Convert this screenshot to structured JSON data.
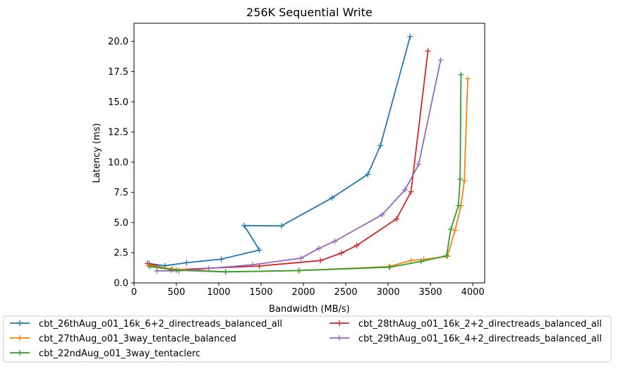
{
  "chart_data": {
    "type": "line",
    "title": "256K  Sequential Write",
    "xlabel": "Bandwidth (MB/s)",
    "ylabel": "Latency (ms)",
    "xlim": [
      0,
      4140
    ],
    "ylim": [
      0,
      21.5
    ],
    "xticks": [
      0,
      500,
      1000,
      1500,
      2000,
      2500,
      3000,
      3500,
      4000
    ],
    "yticks": [
      0.0,
      2.5,
      5.0,
      7.5,
      10.0,
      12.5,
      15.0,
      17.5,
      20.0
    ],
    "xtick_labels": [
      "0",
      "500",
      "1000",
      "1500",
      "2000",
      "2500",
      "3000",
      "3500",
      "4000"
    ],
    "ytick_labels": [
      "0.0",
      "2.5",
      "5.0",
      "7.5",
      "10.0",
      "12.5",
      "15.0",
      "17.5",
      "20.0"
    ],
    "marker": "+",
    "grid": false,
    "legend_position": "bottom, two columns",
    "series": [
      {
        "name": "cbt_26thAug_o01_16k_6+2_directreads_balanced_all",
        "color": "#1f77b4",
        "points": [
          [
            180,
            1.6
          ],
          [
            365,
            1.42
          ],
          [
            620,
            1.67
          ],
          [
            1030,
            1.97
          ],
          [
            1480,
            2.72
          ],
          [
            1300,
            4.75
          ],
          [
            1740,
            4.72
          ],
          [
            2340,
            7.05
          ],
          [
            2760,
            8.98
          ],
          [
            2910,
            11.38
          ],
          [
            3260,
            20.4
          ]
        ]
      },
      {
        "name": "cbt_28thAug_o01_16k_2+2_directreads_balanced_all",
        "color": "#d62728",
        "points": [
          [
            160,
            1.62
          ],
          [
            440,
            1.08
          ],
          [
            1480,
            1.4
          ],
          [
            2200,
            1.85
          ],
          [
            2450,
            2.48
          ],
          [
            2630,
            3.1
          ],
          [
            3100,
            5.3
          ],
          [
            3270,
            7.55
          ],
          [
            3470,
            19.2
          ]
        ]
      },
      {
        "name": "cbt_27thAug_o01_3way_tentacle_balanced",
        "color": "#ff7f0e",
        "points": [
          [
            170,
            1.45
          ],
          [
            450,
            1.15
          ],
          [
            1080,
            0.92
          ],
          [
            1960,
            1.03
          ],
          [
            3010,
            1.35
          ],
          [
            3270,
            1.85
          ],
          [
            3420,
            1.95
          ],
          [
            3700,
            2.2
          ],
          [
            3790,
            4.35
          ],
          [
            3860,
            6.38
          ],
          [
            3900,
            8.45
          ],
          [
            3940,
            16.9
          ]
        ]
      },
      {
        "name": "cbt_29thAug_o01_16k_4+2_directreads_balanced_all",
        "color": "#9467bd",
        "points": [
          [
            270,
            1.0
          ],
          [
            530,
            1.0
          ],
          [
            880,
            1.2
          ],
          [
            1400,
            1.5
          ],
          [
            1970,
            2.05
          ],
          [
            2180,
            2.85
          ],
          [
            2370,
            3.45
          ],
          [
            2930,
            5.65
          ],
          [
            3200,
            7.72
          ],
          [
            3360,
            9.82
          ],
          [
            3620,
            18.45
          ]
        ]
      },
      {
        "name": "cbt_22ndAug_o01_3way_tentaclerc",
        "color": "#2ca02c",
        "points": [
          [
            190,
            1.35
          ],
          [
            500,
            1.05
          ],
          [
            1080,
            0.92
          ],
          [
            1940,
            1.02
          ],
          [
            3020,
            1.3
          ],
          [
            3390,
            1.78
          ],
          [
            3690,
            2.25
          ],
          [
            3740,
            4.45
          ],
          [
            3830,
            6.4
          ],
          [
            3850,
            8.6
          ],
          [
            3860,
            17.25
          ]
        ]
      }
    ]
  }
}
